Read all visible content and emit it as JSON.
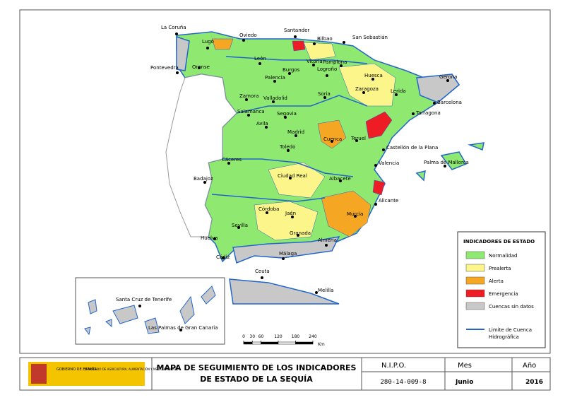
{
  "map": {
    "cities": [
      "La Coruña",
      "Lugo",
      "Oviedo",
      "Santander",
      "Bilbao",
      "San Sebastián",
      "Pontevedra",
      "Orense",
      "León",
      "Vitoria",
      "Pamplona",
      "Logroño",
      "Burgos",
      "Huesca",
      "Palencia",
      "Zaragoza",
      "Lerida",
      "Gerona",
      "Zamora",
      "Valladolid",
      "Soria",
      "Barcelona",
      "Tarragona",
      "Salamanca",
      "Segovia",
      "Avila",
      "Madrid",
      "Castellón de la Plana",
      "Teruel",
      "Cuenca",
      "Toledo",
      "Palma de Mallorca",
      "Valencia",
      "Cáceres",
      "Badajoz",
      "Ciudad Real",
      "Albacete",
      "Alicante",
      "Córdoba",
      "Jaén",
      "Murcia",
      "Sevilla",
      "Granada",
      "Huelva",
      "Almería",
      "Málaga",
      "Cádiz",
      "Ceuta",
      "Melilla",
      "Santa Cruz de Tenerife",
      "Las Palmas de Gran Canaria"
    ]
  },
  "legend": {
    "title": "INDICADORES DE ESTADO",
    "items": [
      {
        "label": "Normalidad",
        "color": "#8fe870"
      },
      {
        "label": "Prealerta",
        "color": "#fbf58a"
      },
      {
        "label": "Alerta",
        "color": "#f5a623"
      },
      {
        "label": "Emergencia",
        "color": "#ee1c25"
      },
      {
        "label": "Cuencas sin datos",
        "color": "#c8c8c8"
      }
    ],
    "boundary_lines": [
      "Limite de Cuenca",
      "Hidrográfica"
    ]
  },
  "scale": {
    "ticks": [
      0,
      30,
      60,
      120,
      180,
      240
    ],
    "unit": "Km"
  },
  "footer": {
    "logo_lines": [
      "GOBIERNO DE ESPAÑA",
      "MINISTERIO DE AGRICULTURA, ALIMENTACIÓN Y MEDIO AMBIENTE"
    ],
    "title_lines": [
      "MAPA DE SEGUIMIENTO DE LOS INDICADORES",
      "DE ESTADO DE LA SEQUÍA"
    ],
    "nipo_label": "N.I.P.O.",
    "nipo": "280-14-009-8",
    "month_label": "Mes",
    "month": "Junio",
    "year_label": "Año",
    "year": 2016
  }
}
